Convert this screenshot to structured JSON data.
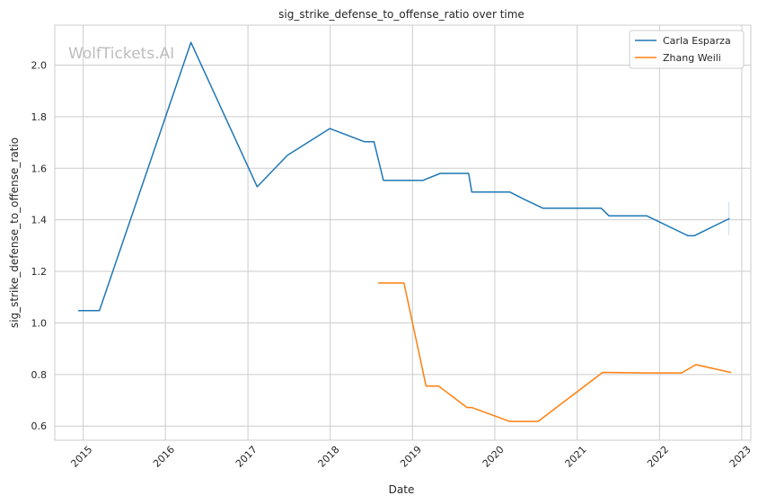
{
  "chart_data": {
    "type": "line",
    "title": "sig_strike_defense_to_offense_ratio over time",
    "xlabel": "Date",
    "ylabel": "sig_strike_defense_to_offense_ratio",
    "watermark": "WolfTickets.AI",
    "grid": true,
    "legend_position": "top-right",
    "xlim": [
      "2014-08-28",
      "2023-02-10"
    ],
    "ylim": [
      0.545,
      2.155
    ],
    "x_ticks": [
      "2015-01-01",
      "2016-01-01",
      "2017-01-01",
      "2018-01-01",
      "2019-01-01",
      "2020-01-01",
      "2021-01-01",
      "2022-01-01",
      "2023-01-01"
    ],
    "x_tick_labels": [
      "2015",
      "2016",
      "2017",
      "2018",
      "2019",
      "2020",
      "2021",
      "2022",
      "2023"
    ],
    "y_ticks": [
      0.6,
      0.8,
      1.0,
      1.2,
      1.4,
      1.6,
      1.8,
      2.0
    ],
    "y_tick_labels": [
      "0.6",
      "0.8",
      "1.0",
      "1.2",
      "1.4",
      "1.6",
      "1.8",
      "2.0"
    ],
    "series": [
      {
        "name": "Carla Esparza",
        "color": "#1f77b4",
        "x": [
          "2014-12-12",
          "2015-03-14",
          "2016-04-23",
          "2017-02-11",
          "2017-06-25",
          "2017-12-30",
          "2018-06-01",
          "2018-07-14",
          "2018-08-25",
          "2019-02-17",
          "2019-05-04",
          "2019-09-07",
          "2019-09-21",
          "2020-03-07",
          "2020-05-09",
          "2020-08-01",
          "2021-04-17",
          "2021-05-22",
          "2021-11-06",
          "2022-05-07",
          "2022-06-04",
          "2022-11-05"
        ],
        "y": [
          1.048,
          1.048,
          2.088,
          1.528,
          1.65,
          1.754,
          1.703,
          1.703,
          1.553,
          1.553,
          1.58,
          1.58,
          1.508,
          1.508,
          1.48,
          1.445,
          1.445,
          1.415,
          1.415,
          1.338,
          1.338,
          1.404
        ],
        "error_bar": {
          "x": "2022-11-05",
          "low": 1.34,
          "high": 1.47
        }
      },
      {
        "name": "Zhang Weili",
        "color": "#ff7f0e",
        "x": [
          "2018-08-04",
          "2018-11-24",
          "2019-03-02",
          "2019-04-27",
          "2019-08-31",
          "2019-09-21",
          "2020-03-07",
          "2020-07-11",
          "2021-04-24",
          "2021-11-06",
          "2022-04-09",
          "2022-06-11",
          "2022-11-12"
        ],
        "y": [
          1.155,
          1.155,
          0.755,
          0.755,
          0.672,
          0.672,
          0.618,
          0.618,
          0.808,
          0.806,
          0.806,
          0.838,
          0.808
        ]
      }
    ]
  }
}
